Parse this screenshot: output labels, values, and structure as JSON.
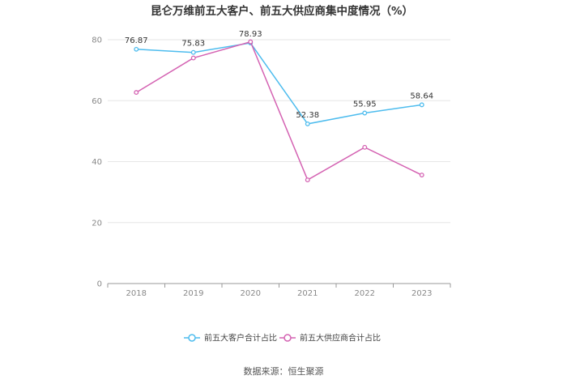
{
  "chart_data": {
    "type": "line",
    "title": "昆仑万维前五大客户、前五大供应商集中度情况（%）",
    "categories": [
      "2018",
      "2019",
      "2020",
      "2021",
      "2022",
      "2023"
    ],
    "ylim": [
      0,
      80
    ],
    "yticks": [
      0,
      20,
      40,
      60,
      80
    ],
    "grid": true,
    "legend_position": "bottom",
    "series": [
      {
        "name": "前五大客户合计占比",
        "color": "#4dbcee",
        "values": [
          76.87,
          75.83,
          78.93,
          52.38,
          55.95,
          58.64
        ],
        "labels": [
          "76.87",
          "75.83",
          "78.93",
          "52.38",
          "55.95",
          "58.64"
        ]
      },
      {
        "name": "前五大供应商合计占比",
        "color": "#d462b2",
        "values": [
          62.7,
          74.0,
          79.3,
          34.0,
          44.7,
          35.6
        ]
      }
    ]
  },
  "source": "数据来源：恒生聚源"
}
